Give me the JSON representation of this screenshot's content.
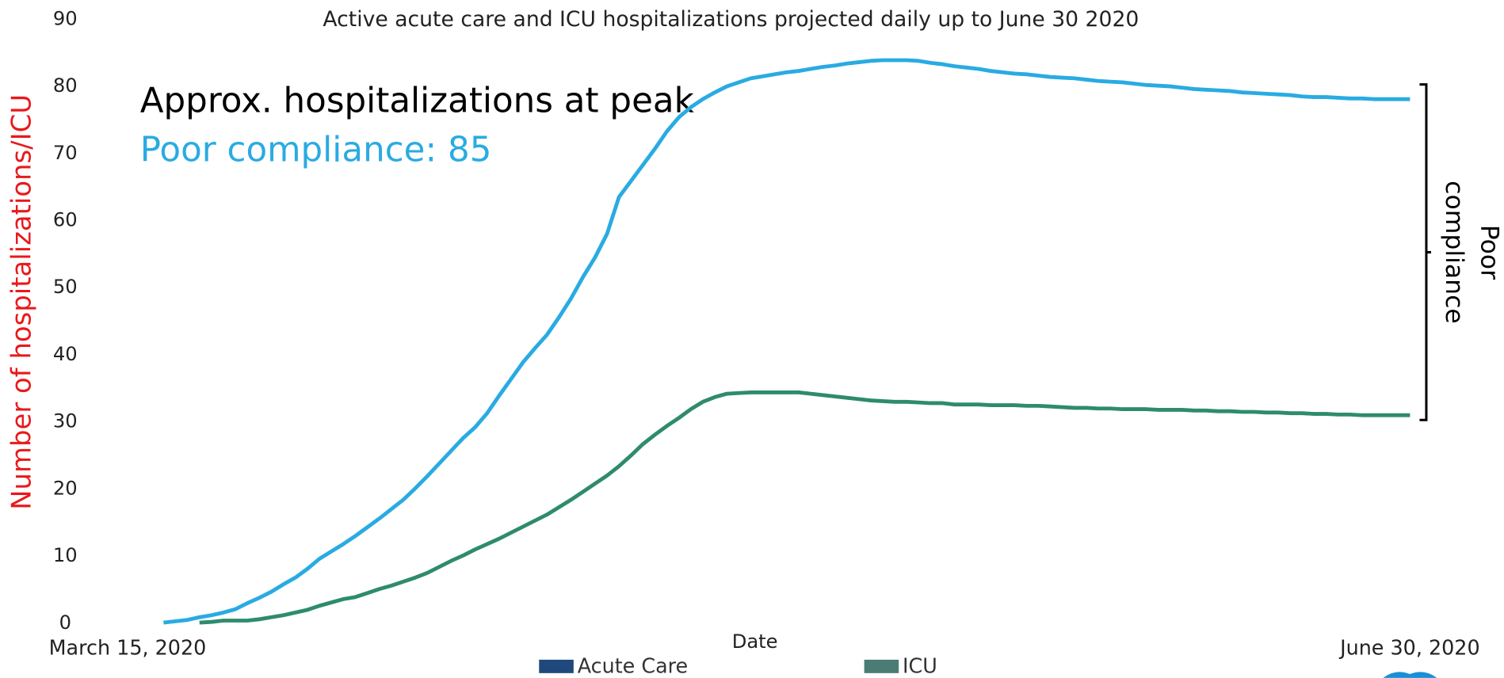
{
  "chart_data": {
    "type": "line",
    "title": "Active acute care and ICU hospitalizations projected daily up to June 30 2020",
    "xlabel": "Date",
    "ylabel": "Number of hospitalizations/ICU",
    "ylabel_color": "#e8191c",
    "annotations": [
      {
        "text": "Approx. hospitalizations at peak",
        "color": "#000000"
      },
      {
        "text": "Poor compliance: 85",
        "color": "#29abe2"
      }
    ],
    "bracket_label": [
      "Poor",
      "compliance"
    ],
    "ylim": [
      0,
      90
    ],
    "yticks": [
      0,
      10,
      20,
      30,
      40,
      50,
      60,
      70,
      80,
      90
    ],
    "grid": false,
    "legend": "bottom",
    "categories": [
      "March 15, 2020",
      null,
      null,
      null,
      null,
      null,
      null,
      null,
      null,
      null,
      null,
      null,
      null,
      null,
      null,
      null,
      null,
      null,
      null,
      null,
      null,
      null,
      null,
      null,
      null,
      null,
      null,
      null,
      null,
      null,
      null,
      null,
      null,
      null,
      null,
      null,
      null,
      null,
      null,
      null,
      null,
      null,
      null,
      null,
      null,
      null,
      null,
      null,
      null,
      null,
      null,
      null,
      null,
      null,
      null,
      null,
      null,
      null,
      null,
      null,
      null,
      null,
      null,
      null,
      null,
      null,
      null,
      null,
      null,
      null,
      null,
      null,
      null,
      null,
      null,
      null,
      null,
      null,
      null,
      null,
      null,
      null,
      null,
      null,
      null,
      null,
      null,
      null,
      null,
      null,
      null,
      null,
      null,
      null,
      null,
      null,
      null,
      null,
      null,
      null,
      null,
      null,
      null,
      null,
      null,
      null,
      null,
      "June 30, 2020"
    ],
    "series": [
      {
        "name": "Acute Care",
        "color": "#29abe2",
        "legend_color": "#1f497d",
        "values": [
          null,
          null,
          null,
          0.1,
          0.3,
          0.5,
          0.9,
          1.2,
          1.6,
          2.1,
          3.0,
          3.8,
          4.7,
          5.8,
          6.8,
          8.1,
          9.6,
          10.7,
          11.8,
          13.0,
          14.3,
          15.6,
          17.0,
          18.4,
          20.1,
          21.9,
          23.8,
          25.7,
          27.6,
          29.2,
          31.3,
          33.9,
          36.4,
          38.9,
          41.0,
          43.0,
          45.6,
          48.4,
          51.6,
          54.5,
          58.0,
          63.5,
          65.9,
          68.3,
          70.7,
          73.3,
          75.4,
          76.9,
          78.1,
          79.1,
          80.0,
          80.6,
          81.2,
          81.5,
          81.8,
          82.1,
          82.3,
          82.6,
          82.9,
          83.1,
          83.4,
          83.6,
          83.8,
          83.9,
          83.9,
          83.9,
          83.8,
          83.5,
          83.3,
          83.0,
          82.8,
          82.6,
          82.3,
          82.1,
          81.9,
          81.8,
          81.6,
          81.4,
          81.3,
          81.2,
          81.0,
          80.8,
          80.7,
          80.6,
          80.4,
          80.2,
          80.1,
          80.0,
          79.8,
          79.6,
          79.5,
          79.4,
          79.3,
          79.1,
          79.0,
          78.9,
          78.8,
          78.7,
          78.5,
          78.4,
          78.4,
          78.3,
          78.2,
          78.2,
          78.1,
          78.1,
          78.1,
          78.1
        ]
      },
      {
        "name": "ICU",
        "color": "#2e8b6e",
        "legend_color": "#4a7c74",
        "values": [
          null,
          null,
          null,
          null,
          null,
          null,
          0.1,
          0.2,
          0.4,
          0.4,
          0.4,
          0.6,
          0.9,
          1.2,
          1.6,
          2.0,
          2.6,
          3.1,
          3.6,
          3.9,
          4.5,
          5.1,
          5.6,
          6.2,
          6.8,
          7.5,
          8.4,
          9.3,
          10.1,
          11.0,
          11.8,
          12.6,
          13.5,
          14.4,
          15.3,
          16.2,
          17.3,
          18.4,
          19.6,
          20.8,
          22.0,
          23.4,
          25.0,
          26.7,
          28.1,
          29.4,
          30.6,
          31.9,
          33.0,
          33.7,
          34.2,
          34.3,
          34.4,
          34.4,
          34.4,
          34.4,
          34.4,
          34.2,
          34.0,
          33.8,
          33.6,
          33.4,
          33.2,
          33.1,
          33.0,
          33.0,
          32.9,
          32.8,
          32.8,
          32.6,
          32.6,
          32.6,
          32.5,
          32.5,
          32.5,
          32.4,
          32.4,
          32.3,
          32.2,
          32.1,
          32.1,
          32.0,
          32.0,
          31.9,
          31.9,
          31.9,
          31.8,
          31.8,
          31.8,
          31.7,
          31.7,
          31.6,
          31.6,
          31.5,
          31.5,
          31.4,
          31.4,
          31.3,
          31.3,
          31.2,
          31.2,
          31.1,
          31.1,
          31.0,
          31.0,
          31.0,
          31.0,
          31.0
        ]
      }
    ]
  }
}
